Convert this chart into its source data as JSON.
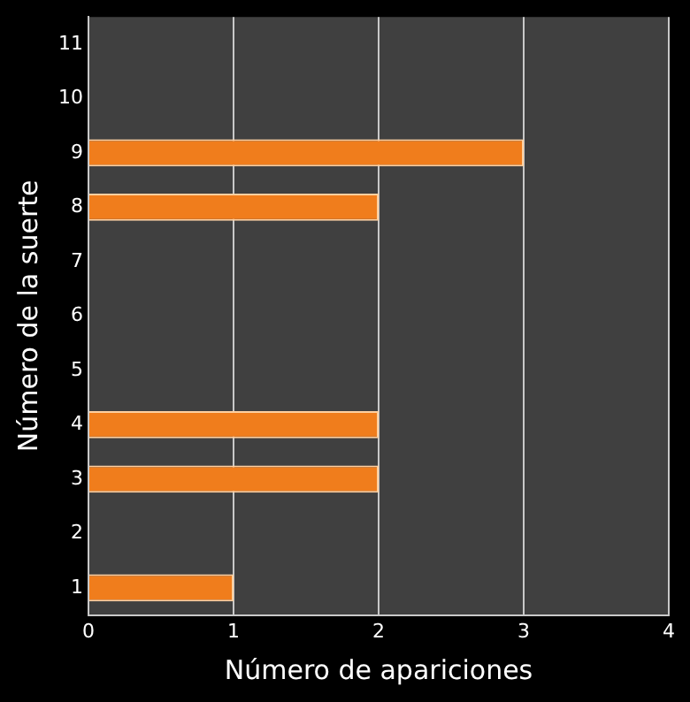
{
  "chart_data": {
    "type": "bar",
    "orientation": "horizontal",
    "xlabel": "Número de apariciones",
    "ylabel": "Número de la suerte",
    "categories": [
      "11",
      "10",
      "9",
      "8",
      "7",
      "6",
      "5",
      "4",
      "3",
      "2",
      "1"
    ],
    "values": [
      0,
      0,
      3,
      2,
      0,
      0,
      0,
      2,
      2,
      0,
      1
    ],
    "color": "#f07d1c",
    "xlim": [
      0,
      4
    ],
    "xticks": [
      0,
      1,
      2,
      3,
      4
    ],
    "grid": "x",
    "legend": false
  }
}
